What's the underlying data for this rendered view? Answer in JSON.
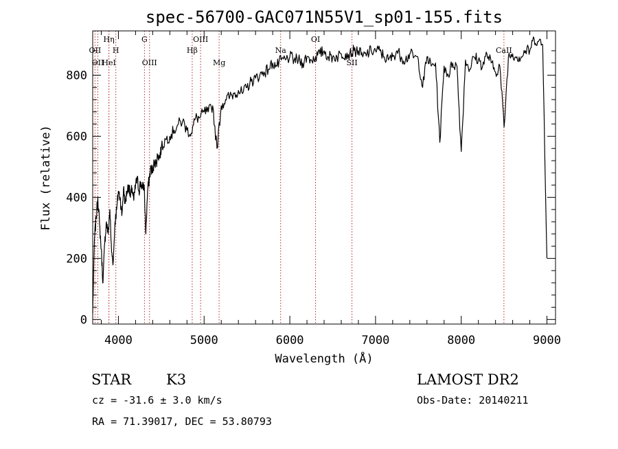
{
  "header": {
    "title": "spec-56700-GAC071N55V1_sp01-155.fits"
  },
  "info": {
    "class": "STAR",
    "subclass": "K3",
    "survey": "LAMOST DR2",
    "cz": "cz = -31.6 ± 3.0 km/s",
    "obs_date": "Obs-Date: 20140211",
    "coords": "RA =  71.39017, DEC =  53.80793"
  },
  "chart_data": {
    "type": "line",
    "title": "spec-56700-GAC071N55V1_sp01-155.fits",
    "xlabel": "Wavelength (Å)",
    "ylabel": "Flux (relative)",
    "xlim": [
      3700,
      9100
    ],
    "ylim": [
      -15,
      945
    ],
    "x_ticks": [
      4000,
      5000,
      6000,
      7000,
      8000,
      9000
    ],
    "x_tick_labels": [
      "4000",
      "5000",
      "6000",
      "7000",
      "8000",
      "9000"
    ],
    "y_ticks": [
      0,
      200,
      400,
      600,
      800
    ],
    "y_tick_labels": [
      "0",
      "200",
      "400",
      "600",
      "800"
    ],
    "grid": false,
    "line_color": "#000000",
    "marker_color": "#b22222",
    "spectral_lines": [
      {
        "wavelength": 3727,
        "label": "OII",
        "row": 2
      },
      {
        "wavelength": 3760,
        "label": "OII",
        "row": 3
      },
      {
        "wavelength": 3889,
        "label": "Hη",
        "row": 1
      },
      {
        "wavelength": 3889,
        "label": "HeI",
        "row": 3
      },
      {
        "wavelength": 3970,
        "label": "H",
        "row": 2
      },
      {
        "wavelength": 4304,
        "label": "G",
        "row": 1
      },
      {
        "wavelength": 4363,
        "label": "OIII",
        "row": 3
      },
      {
        "wavelength": 4861,
        "label": "Hβ",
        "row": 2
      },
      {
        "wavelength": 4959,
        "label": "OIII",
        "row": 1
      },
      {
        "wavelength": 5175,
        "label": "Mg",
        "row": 3
      },
      {
        "wavelength": 5893,
        "label": "Na",
        "row": 2
      },
      {
        "wavelength": 6300,
        "label": "OI",
        "row": 1
      },
      {
        "wavelength": 6725,
        "label": "SII",
        "row": 3
      },
      {
        "wavelength": 8498,
        "label": "CaII",
        "row": 2
      }
    ],
    "series": [
      {
        "x": [
          3700,
          3720,
          3740,
          3760,
          3780,
          3800,
          3820,
          3840,
          3860,
          3880,
          3900,
          3920,
          3940,
          3960,
          3980,
          4000,
          4020,
          4040,
          4060,
          4080,
          4100,
          4120,
          4140,
          4160,
          4180,
          4200,
          4220,
          4240,
          4260,
          4280,
          4300,
          4320,
          4340,
          4360,
          4380,
          4400,
          4420,
          4440,
          4460,
          4480,
          4500,
          4550,
          4600,
          4650,
          4700,
          4750,
          4800,
          4850,
          4900,
          4950,
          5000,
          5050,
          5100,
          5150,
          5200,
          5250,
          5300,
          5350,
          5400,
          5450,
          5500,
          5550,
          5600,
          5650,
          5700,
          5750,
          5800,
          5850,
          5900,
          5950,
          6000,
          6050,
          6100,
          6150,
          6200,
          6250,
          6300,
          6350,
          6400,
          6450,
          6500,
          6550,
          6600,
          6650,
          6700,
          6750,
          6800,
          6850,
          6900,
          6950,
          7000,
          7050,
          7100,
          7150,
          7200,
          7250,
          7300,
          7350,
          7400,
          7450,
          7500,
          7550,
          7600,
          7650,
          7700,
          7750,
          7800,
          7850,
          7900,
          7950,
          8000,
          8050,
          8100,
          8150,
          8200,
          8250,
          8300,
          8350,
          8400,
          8450,
          8500,
          8550,
          8600,
          8650,
          8700,
          8750,
          8800,
          8850,
          8900,
          8950,
          9000
        ],
        "values": [
          20,
          260,
          330,
          400,
          310,
          230,
          120,
          250,
          320,
          280,
          360,
          220,
          190,
          320,
          360,
          420,
          400,
          340,
          430,
          380,
          420,
          440,
          400,
          430,
          390,
          440,
          460,
          420,
          450,
          430,
          440,
          280,
          420,
          460,
          500,
          480,
          520,
          510,
          540,
          530,
          560,
          590,
          600,
          620,
          640,
          650,
          620,
          610,
          660,
          660,
          680,
          680,
          700,
          560,
          700,
          720,
          730,
          740,
          750,
          740,
          760,
          780,
          790,
          800,
          810,
          820,
          840,
          830,
          850,
          850,
          860,
          850,
          850,
          840,
          860,
          850,
          860,
          870,
          880,
          860,
          860,
          860,
          870,
          870,
          870,
          880,
          880,
          860,
          870,
          880,
          880,
          880,
          860,
          850,
          860,
          880,
          860,
          850,
          870,
          860,
          850,
          760,
          860,
          830,
          840,
          580,
          830,
          800,
          840,
          830,
          550,
          850,
          820,
          860,
          850,
          830,
          870,
          840,
          810,
          830,
          630,
          860,
          870,
          860,
          860,
          880,
          880,
          920,
          910,
          900,
          200
        ]
      }
    ]
  }
}
